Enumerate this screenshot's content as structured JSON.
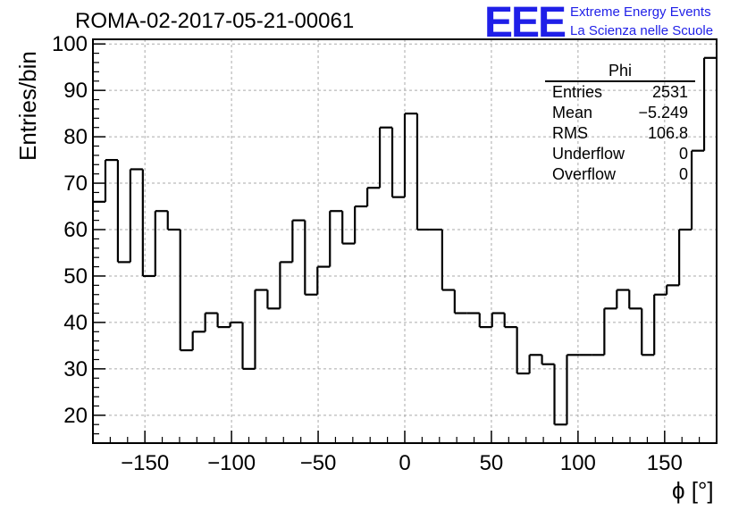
{
  "title": "ROMA-02-2017-05-21-00061",
  "brand": {
    "logo": "EEE",
    "line1": "Extreme Energy Events",
    "line2": "La Scienza nelle Scuole",
    "color": "#1f1fe8"
  },
  "stats": {
    "name": "Phi",
    "rows": [
      {
        "label": "Entries",
        "value": "2531"
      },
      {
        "label": "Mean",
        "value": "−5.249"
      },
      {
        "label": "RMS",
        "value": "106.8"
      },
      {
        "label": "Underflow",
        "value": "0"
      },
      {
        "label": "Overflow",
        "value": "0"
      }
    ]
  },
  "chart_data": {
    "type": "bar",
    "style": "step-histogram",
    "title": "ROMA-02-2017-05-21-00061",
    "xlabel": "ϕ [°]",
    "ylabel": "Entries/bin",
    "xlim": [
      -180,
      180
    ],
    "ylim": [
      14,
      101
    ],
    "bin_width": 7.2,
    "bin_edges_start": -180,
    "values": [
      66,
      75,
      53,
      73,
      50,
      64,
      60,
      34,
      38,
      42,
      39,
      40,
      30,
      47,
      43,
      53,
      62,
      46,
      52,
      64,
      57,
      65,
      69,
      82,
      67,
      85,
      60,
      60,
      47,
      42,
      42,
      39,
      42,
      39,
      29,
      33,
      31,
      18,
      33,
      33,
      33,
      43,
      47,
      43,
      33,
      46,
      48,
      60,
      77,
      97
    ],
    "xticks": [
      -150,
      -100,
      -50,
      0,
      50,
      100,
      150
    ],
    "xtick_labels": [
      "−150",
      "−100",
      "−50",
      "0",
      "50",
      "100",
      "150"
    ],
    "yticks": [
      20,
      30,
      40,
      50,
      60,
      70,
      80,
      90,
      100
    ],
    "ytick_labels": [
      "20",
      "30",
      "40",
      "50",
      "60",
      "70",
      "80",
      "90",
      "100"
    ],
    "grid": true,
    "line_color": "#000000"
  }
}
